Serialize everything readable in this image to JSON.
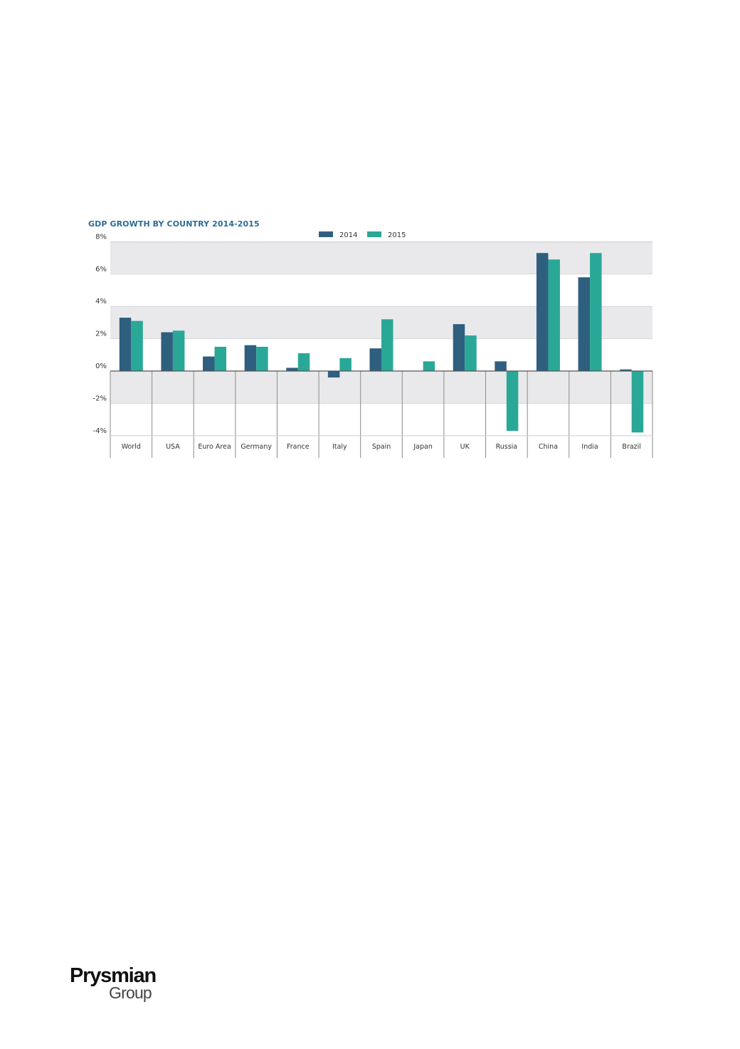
{
  "chart_data": {
    "type": "bar",
    "title": "GDP GROWTH BY COUNTRY 2014-2015",
    "categories": [
      "World",
      "USA",
      "Euro Area",
      "Germany",
      "France",
      "Italy",
      "Spain",
      "Japan",
      "UK",
      "Russia",
      "China",
      "India",
      "Brazil"
    ],
    "series": [
      {
        "name": "2014",
        "color": "#2f5f7f",
        "values": [
          3.3,
          2.4,
          0.9,
          1.6,
          0.2,
          -0.4,
          1.4,
          0.0,
          2.9,
          0.6,
          7.3,
          5.8,
          0.1
        ]
      },
      {
        "name": "2015",
        "color": "#2aa897",
        "values": [
          3.1,
          2.5,
          1.5,
          1.5,
          1.1,
          0.8,
          3.2,
          0.6,
          2.2,
          -3.7,
          6.9,
          7.3,
          -3.8
        ]
      }
    ],
    "y_ticks": [
      "8%",
      "6%",
      "4%",
      "2%",
      "0%",
      "-2%",
      "-4%"
    ],
    "ylim": [
      -4,
      8
    ],
    "title_color": "#2b6c95",
    "band_color": "#e9e9eb",
    "legend_position": "top-center",
    "xlabel": "",
    "ylabel": ""
  },
  "footer": {
    "logo_main": "Prysmian",
    "logo_sub": "Group"
  }
}
